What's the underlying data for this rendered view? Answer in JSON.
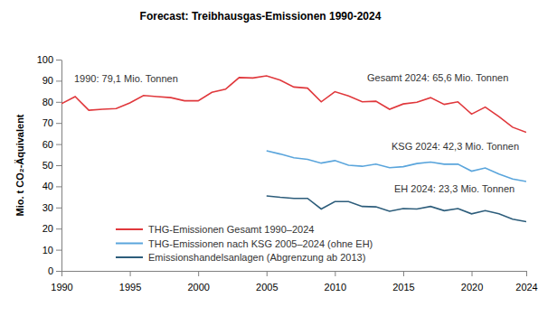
{
  "chart_data": {
    "type": "line",
    "title": "Forecast: Treibhausgas-Emissionen 1990-2024",
    "y_label": "Mio. t CO₂-Äquivalent",
    "x": [
      1990,
      1991,
      1992,
      1993,
      1994,
      1995,
      1996,
      1997,
      1998,
      1999,
      2000,
      2001,
      2002,
      2003,
      2004,
      2005,
      2006,
      2007,
      2008,
      2009,
      2010,
      2011,
      2012,
      2013,
      2014,
      2015,
      2016,
      2017,
      2018,
      2019,
      2020,
      2021,
      2022,
      2023,
      2024
    ],
    "series": [
      {
        "name": "THG-Emissionen Gesamt 1990–2024",
        "color": "#e0383c",
        "values": [
          79.1,
          82.5,
          76,
          76.5,
          76.8,
          79.5,
          83,
          82.5,
          82,
          80.5,
          80.5,
          84.5,
          86,
          91.5,
          91.3,
          92.3,
          90.3,
          87,
          86.5,
          80,
          84.8,
          82.8,
          80,
          80.3,
          76.5,
          79,
          79.8,
          82,
          78.8,
          80,
          74.2,
          77.5,
          73,
          68,
          65.6
        ]
      },
      {
        "name": "THG-Emissionen nach KSG 2005–2024 (ohne EH)",
        "color": "#5aa5dc",
        "values": [
          null,
          null,
          null,
          null,
          null,
          null,
          null,
          null,
          null,
          null,
          null,
          null,
          null,
          null,
          null,
          56.8,
          55.3,
          53.5,
          52.8,
          51,
          52.2,
          50,
          49.5,
          50.5,
          48.8,
          49.3,
          50.8,
          51.5,
          50.5,
          50.5,
          47.2,
          48.7,
          45.8,
          43.5,
          42.3
        ]
      },
      {
        "name": "Emissionshandelsanlagen (Abgrenzung ab 2013)",
        "color": "#2d5d7b",
        "values": [
          null,
          null,
          null,
          null,
          null,
          null,
          null,
          null,
          null,
          null,
          null,
          null,
          null,
          null,
          null,
          35.5,
          34.8,
          34.3,
          34.3,
          29.3,
          32.8,
          32.8,
          30.5,
          30.3,
          28.2,
          29.5,
          29.3,
          30.5,
          28.5,
          29.5,
          27,
          28.5,
          27,
          24.5,
          23.3
        ]
      }
    ],
    "annotations": [
      "1990: 79,1 Mio. Tonnen",
      "Gesamt 2024: 65,6 Mio. Tonnen",
      "KSG 2024: 42,3 Mio. Tonnen",
      "EH 2024: 23,3 Mio. Tonnen"
    ],
    "xlim": [
      1990,
      2024
    ],
    "xticks": [
      1990,
      1995,
      2000,
      2005,
      2010,
      2015,
      2020,
      2024
    ],
    "ylim": [
      0,
      100
    ],
    "yticks": [
      0,
      10,
      20,
      30,
      40,
      50,
      60,
      70,
      80,
      90,
      100
    ],
    "grid": false,
    "legend": "lower left"
  }
}
